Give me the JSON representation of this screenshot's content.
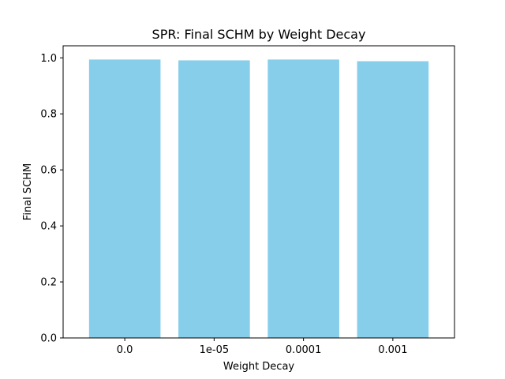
{
  "chart_data": {
    "type": "bar",
    "title": "SPR: Final SCHM by Weight Decay",
    "xlabel": "Weight Decay",
    "ylabel": "Final SCHM",
    "categories": [
      "0.0",
      "1e-05",
      "0.0001",
      "0.001"
    ],
    "values": [
      0.994,
      0.991,
      0.994,
      0.988
    ],
    "ylim": [
      0,
      1.043
    ],
    "yticks": [
      "0.0",
      "0.2",
      "0.4",
      "0.6",
      "0.8",
      "1.0"
    ],
    "bar_color": "#87ceeb",
    "grid": false,
    "legend": "none"
  }
}
